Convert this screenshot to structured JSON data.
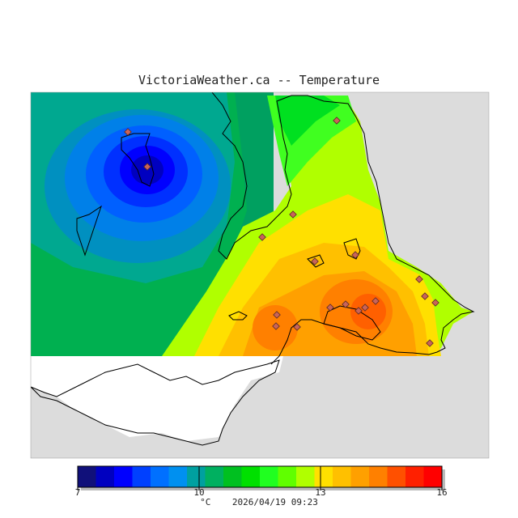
{
  "title": "VictoriaWeather.ca -- Temperature",
  "legend": {
    "unit": "°C",
    "timestamp": "2026/04/19 09:23",
    "min": 7,
    "max": 16,
    "ticks": [
      "7",
      "10",
      "13",
      "16"
    ],
    "colors": [
      "#10107a",
      "#0000c0",
      "#0000ff",
      "#0040ff",
      "#0070ff",
      "#0090f0",
      "#00a0a0",
      "#00b060",
      "#00c020",
      "#00e000",
      "#20ff20",
      "#60ff00",
      "#b0ff00",
      "#ffe000",
      "#ffc000",
      "#ffa000",
      "#ff8000",
      "#ff5000",
      "#ff2000",
      "#ff0000"
    ]
  },
  "colors": {
    "land_grey": "#dcdcdc",
    "water_white": "#ffffff",
    "station_marker": "#c8645a"
  }
}
